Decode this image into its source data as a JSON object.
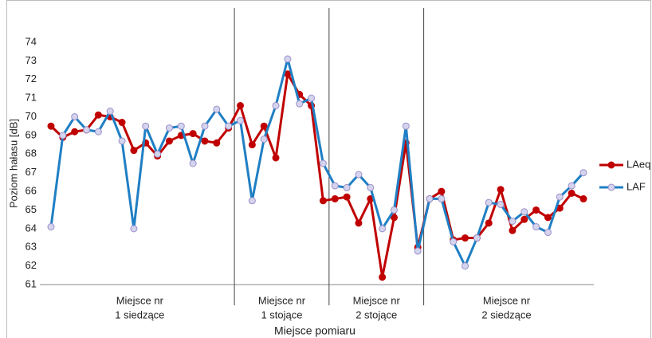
{
  "chart_data": {
    "type": "line",
    "y_label": "Poziom hałasu [dB]",
    "x_label": "Miejsce pomiaru",
    "ylim": [
      61,
      74
    ],
    "yticks": [
      61,
      62,
      63,
      64,
      65,
      66,
      67,
      68,
      69,
      70,
      71,
      72,
      73,
      74
    ],
    "categories": [
      null,
      null,
      null,
      null,
      null,
      null,
      null,
      null,
      null,
      null,
      null,
      null,
      null,
      null,
      null,
      null,
      null,
      null,
      null,
      null,
      null,
      null,
      null,
      null,
      null,
      null,
      null,
      null,
      null,
      null,
      null,
      null,
      null,
      null,
      null,
      null,
      null,
      null,
      null,
      null,
      null,
      null,
      null,
      null,
      null,
      null
    ],
    "groups": [
      {
        "lines": [
          "Miejsce nr",
          "1 siedzące"
        ],
        "size": 16
      },
      {
        "lines": [
          "Miejsce nr",
          "1 stojące"
        ],
        "size": 8
      },
      {
        "lines": [
          "Miejsce nr",
          "2 stojące"
        ],
        "size": 8
      },
      {
        "lines": [
          "Miejsce nr",
          "2 siedzące"
        ],
        "size": 14
      }
    ],
    "series": [
      {
        "name": "LAeq",
        "color": "#c00000",
        "marker_fill": "#c00000",
        "marker_stroke": "#c00000",
        "values": [
          69.5,
          68.9,
          69.2,
          69.3,
          70.1,
          70.0,
          69.7,
          68.2,
          68.6,
          67.9,
          68.7,
          69.0,
          69.1,
          68.7,
          68.6,
          69.4,
          70.6,
          68.5,
          69.5,
          67.8,
          72.3,
          71.2,
          70.6,
          65.5,
          65.6,
          65.7,
          64.3,
          65.6,
          61.4,
          64.6,
          68.6,
          63.0,
          65.6,
          66.0,
          63.4,
          63.5,
          63.5,
          64.3,
          66.1,
          63.9,
          64.5,
          65.0,
          64.6,
          65.1,
          65.9,
          65.6
        ]
      },
      {
        "name": "LAF",
        "color": "#1f7fc4",
        "marker_fill": "#d4d4ee",
        "marker_stroke": "#9a8fc8",
        "values": [
          64.1,
          69.0,
          70.0,
          69.3,
          69.2,
          70.3,
          68.7,
          64.0,
          69.5,
          68.0,
          69.4,
          69.5,
          67.5,
          69.5,
          70.4,
          69.5,
          69.8,
          65.5,
          68.8,
          70.6,
          73.1,
          70.7,
          71.0,
          67.5,
          66.3,
          66.2,
          66.9,
          66.2,
          64.0,
          65.0,
          69.5,
          62.8,
          65.6,
          65.6,
          63.3,
          62.0,
          63.5,
          65.4,
          65.3,
          64.4,
          64.9,
          64.1,
          63.8,
          65.7,
          66.3,
          67.0
        ]
      }
    ]
  }
}
